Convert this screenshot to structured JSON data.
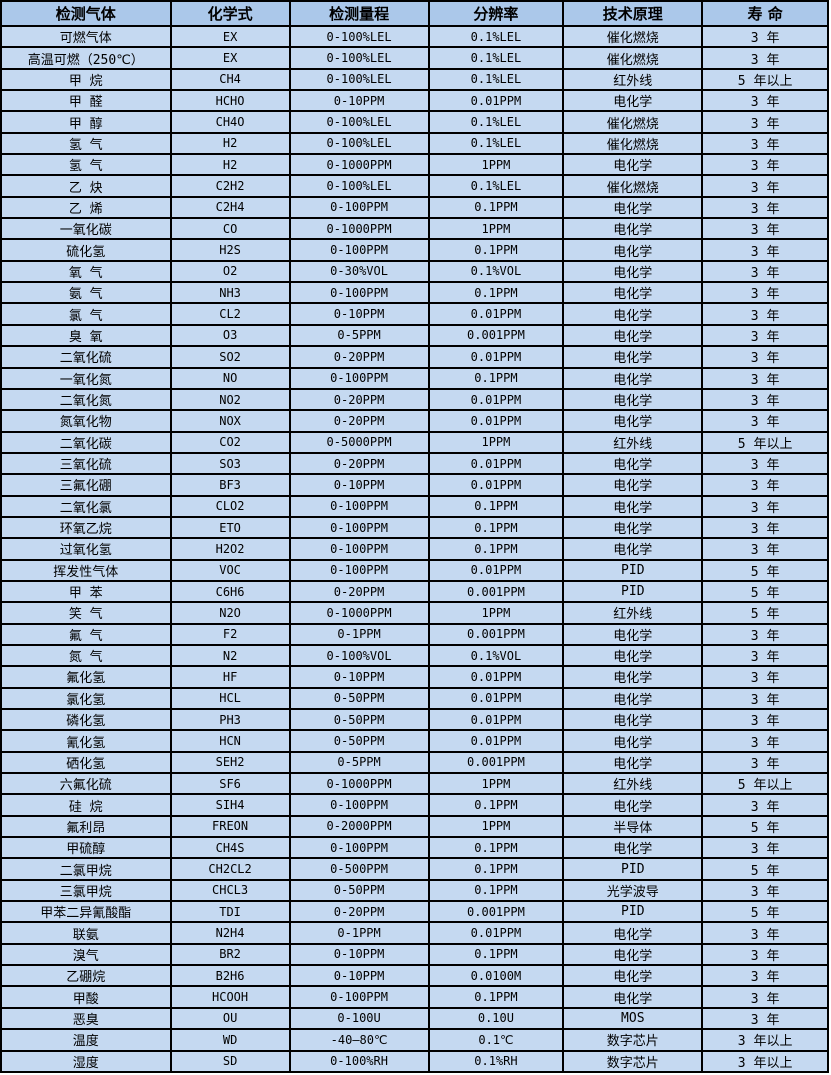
{
  "colors": {
    "header_bg": "#abc8ea",
    "row_bg": "#c5d9f1",
    "border": "#000000",
    "text": "#000000"
  },
  "table": {
    "columns": [
      {
        "key": "gas",
        "label": "检测气体"
      },
      {
        "key": "formula",
        "label": "化学式"
      },
      {
        "key": "range",
        "label": "检测量程"
      },
      {
        "key": "resolution",
        "label": "分辨率"
      },
      {
        "key": "principle",
        "label": "技术原理"
      },
      {
        "key": "lifespan",
        "label": "寿 命"
      }
    ],
    "rows": [
      [
        "可燃气体",
        "EX",
        "0-100%LEL",
        "0.1%LEL",
        "催化燃烧",
        "3 年"
      ],
      [
        "高温可燃（250℃）",
        "EX",
        "0-100%LEL",
        "0.1%LEL",
        "催化燃烧",
        "3 年"
      ],
      [
        "甲 烷",
        "CH4",
        "0-100%LEL",
        "0.1%LEL",
        "红外线",
        "5 年以上"
      ],
      [
        "甲 醛",
        "HCHO",
        "0-10PPM",
        "0.01PPM",
        "电化学",
        "3 年"
      ],
      [
        "甲 醇",
        "CH4O",
        "0-100%LEL",
        "0.1%LEL",
        "催化燃烧",
        "3 年"
      ],
      [
        "氢 气",
        "H2",
        "0-100%LEL",
        "0.1%LEL",
        "催化燃烧",
        "3 年"
      ],
      [
        "氢 气",
        "H2",
        "0-1000PPM",
        "1PPM",
        "电化学",
        "3 年"
      ],
      [
        "乙 炔",
        "C2H2",
        "0-100%LEL",
        "0.1%LEL",
        "催化燃烧",
        "3 年"
      ],
      [
        "乙 烯",
        "C2H4",
        "0-100PPM",
        "0.1PPM",
        "电化学",
        "3 年"
      ],
      [
        "一氧化碳",
        "CO",
        "0-1000PPM",
        "1PPM",
        "电化学",
        "3 年"
      ],
      [
        "硫化氢",
        "H2S",
        "0-100PPM",
        "0.1PPM",
        "电化学",
        "3 年"
      ],
      [
        "氧 气",
        "O2",
        "0-30%VOL",
        "0.1%VOL",
        "电化学",
        "3 年"
      ],
      [
        "氨 气",
        "NH3",
        "0-100PPM",
        "0.1PPM",
        "电化学",
        "3 年"
      ],
      [
        "氯 气",
        "CL2",
        "0-10PPM",
        "0.01PPM",
        "电化学",
        "3 年"
      ],
      [
        "臭 氧",
        "O3",
        "0-5PPM",
        "0.001PPM",
        "电化学",
        "3 年"
      ],
      [
        "二氧化硫",
        "SO2",
        "0-20PPM",
        "0.01PPM",
        "电化学",
        "3 年"
      ],
      [
        "一氧化氮",
        "NO",
        "0-100PPM",
        "0.1PPM",
        "电化学",
        "3 年"
      ],
      [
        "二氧化氮",
        "NO2",
        "0-20PPM",
        "0.01PPM",
        "电化学",
        "3 年"
      ],
      [
        "氮氧化物",
        "NOX",
        "0-20PPM",
        "0.01PPM",
        "电化学",
        "3 年"
      ],
      [
        "二氧化碳",
        "CO2",
        "0-5000PPM",
        "1PPM",
        "红外线",
        "5 年以上"
      ],
      [
        "三氧化硫",
        "SO3",
        "0-20PPM",
        "0.01PPM",
        "电化学",
        "3 年"
      ],
      [
        "三氟化硼",
        "BF3",
        "0-10PPM",
        "0.01PPM",
        "电化学",
        "3 年"
      ],
      [
        "二氧化氯",
        "CLO2",
        "0-100PPM",
        "0.1PPM",
        "电化学",
        "3 年"
      ],
      [
        "环氧乙烷",
        "ETO",
        "0-100PPM",
        "0.1PPM",
        "电化学",
        "3 年"
      ],
      [
        "过氧化氢",
        "H2O2",
        "0-100PPM",
        "0.1PPM",
        "电化学",
        "3 年"
      ],
      [
        "挥发性气体",
        "VOC",
        "0-100PPM",
        "0.01PPM",
        "PID",
        "5 年"
      ],
      [
        "甲 苯",
        "C6H6",
        "0-20PPM",
        "0.001PPM",
        "PID",
        "5 年"
      ],
      [
        "笑 气",
        "N2O",
        "0-1000PPM",
        "1PPM",
        "红外线",
        "5 年"
      ],
      [
        "氟 气",
        "F2",
        "0-1PPM",
        "0.001PPM",
        "电化学",
        "3 年"
      ],
      [
        "氮 气",
        "N2",
        "0-100%VOL",
        "0.1%VOL",
        "电化学",
        "3 年"
      ],
      [
        "氟化氢",
        "HF",
        "0-10PPM",
        "0.01PPM",
        "电化学",
        "3 年"
      ],
      [
        "氯化氢",
        "HCL",
        "0-50PPM",
        "0.01PPM",
        "电化学",
        "3 年"
      ],
      [
        "磷化氢",
        "PH3",
        "0-50PPM",
        "0.01PPM",
        "电化学",
        "3 年"
      ],
      [
        "氰化氢",
        "HCN",
        "0-50PPM",
        "0.01PPM",
        "电化学",
        "3 年"
      ],
      [
        "硒化氢",
        "SEH2",
        "0-5PPM",
        "0.001PPM",
        "电化学",
        "3 年"
      ],
      [
        "六氟化硫",
        "SF6",
        "0-1000PPM",
        "1PPM",
        "红外线",
        "5 年以上"
      ],
      [
        "硅 烷",
        "SIH4",
        "0-100PPM",
        "0.1PPM",
        "电化学",
        "3 年"
      ],
      [
        "氟利昂",
        "FREON",
        "0-2000PPM",
        "1PPM",
        "半导体",
        "5 年"
      ],
      [
        "甲硫醇",
        "CH4S",
        "0-100PPM",
        "0.1PPM",
        "电化学",
        "3 年"
      ],
      [
        "二氯甲烷",
        "CH2CL2",
        "0-500PPM",
        "0.1PPM",
        "PID",
        "5 年"
      ],
      [
        "三氯甲烷",
        "CHCL3",
        "0-50PPM",
        "0.1PPM",
        "光学波导",
        "3 年"
      ],
      [
        "甲苯二异氰酸酯",
        "TDI",
        "0-20PPM",
        "0.001PPM",
        "PID",
        "5 年"
      ],
      [
        "联氨",
        "N2H4",
        "0-1PPM",
        "0.01PPM",
        "电化学",
        "3 年"
      ],
      [
        "溴气",
        "BR2",
        "0-10PPM",
        "0.1PPM",
        "电化学",
        "3 年"
      ],
      [
        "乙硼烷",
        "B2H6",
        "0-10PPM",
        "0.0100M",
        "电化学",
        "3 年"
      ],
      [
        "甲酸",
        "HCOOH",
        "0-100PPM",
        "0.1PPM",
        "电化学",
        "3 年"
      ],
      [
        "恶臭",
        "OU",
        "0-100U",
        "0.10U",
        "MOS",
        "3 年"
      ],
      [
        "温度",
        "WD",
        "-40—80℃",
        "0.1℃",
        "数字芯片",
        "3 年以上"
      ],
      [
        "湿度",
        "SD",
        "0-100%RH",
        "0.1%RH",
        "数字芯片",
        "3 年以上"
      ]
    ]
  }
}
